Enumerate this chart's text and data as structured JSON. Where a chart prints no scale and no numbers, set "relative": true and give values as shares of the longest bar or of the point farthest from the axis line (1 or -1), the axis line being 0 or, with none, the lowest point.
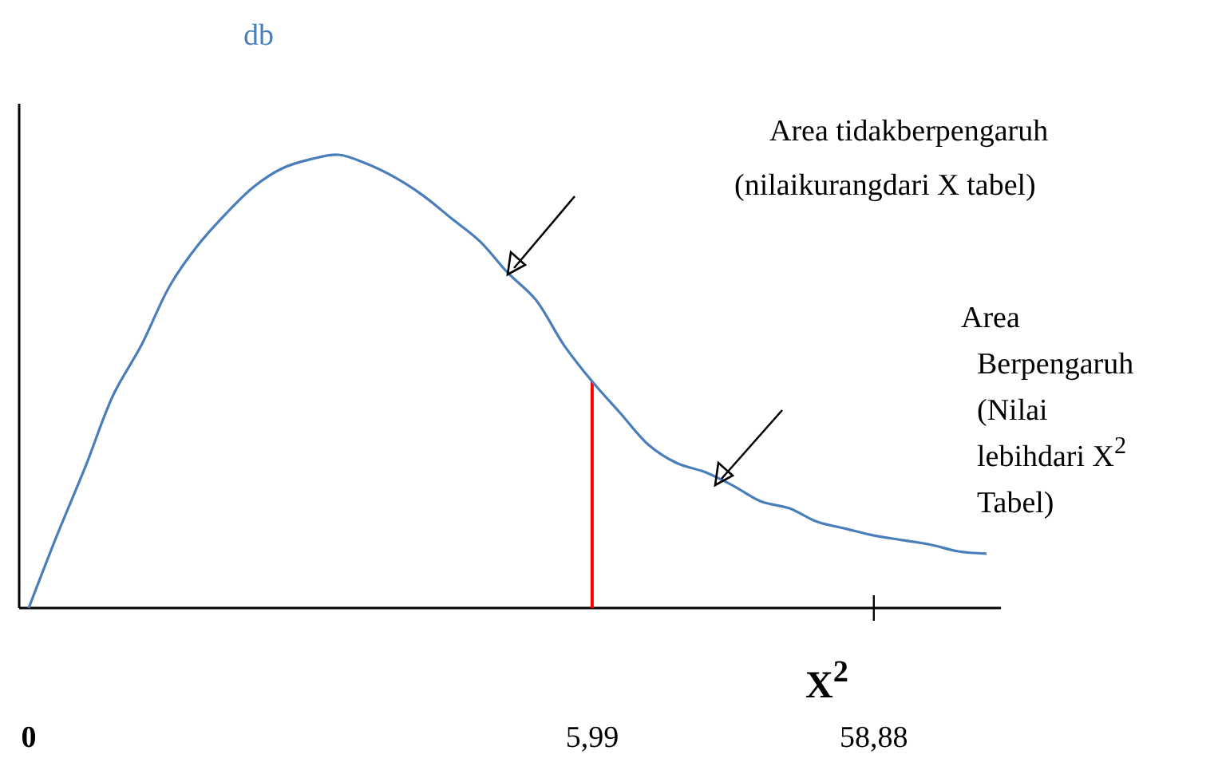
{
  "chart_data": {
    "type": "line",
    "relative": true,
    "ylabel": "db",
    "xlabel": "X$^{2}$",
    "categories": [
      "0",
      null,
      null,
      null,
      null,
      null,
      null,
      null,
      null,
      null,
      null,
      null,
      null,
      null,
      null,
      null,
      null,
      null,
      null,
      null,
      "5,99",
      null,
      null,
      null,
      null,
      null,
      null,
      null,
      null,
      null,
      "58,88",
      null,
      null,
      null,
      null
    ],
    "series": [
      {
        "color": "#4a7ebb",
        "values": [
          0,
          0.16,
          0.31,
          0.47,
          0.58,
          0.71,
          0.8,
          0.87,
          0.93,
          0.97,
          0.99,
          1,
          0.98,
          0.95,
          0.91,
          0.86,
          0.81,
          0.74,
          0.68,
          0.58,
          0.5,
          0.43,
          0.36,
          0.32,
          0.3,
          0.27,
          0.235,
          0.22,
          0.19,
          0.175,
          0.16,
          0.15,
          0.14,
          0.125,
          0.12
        ]
      }
    ],
    "ref_lines": [
      {
        "axis": "x",
        "value": "5,99",
        "color": "#ff0000"
      }
    ],
    "annotations": [
      "Area tidakberpengaruh",
      "(nilaikurangdari X tabel)",
      "Area\nBerpengaruh\n(Nilai\nlebihdari X$^{2}$\nTabel)"
    ],
    "line_style": "solid"
  }
}
